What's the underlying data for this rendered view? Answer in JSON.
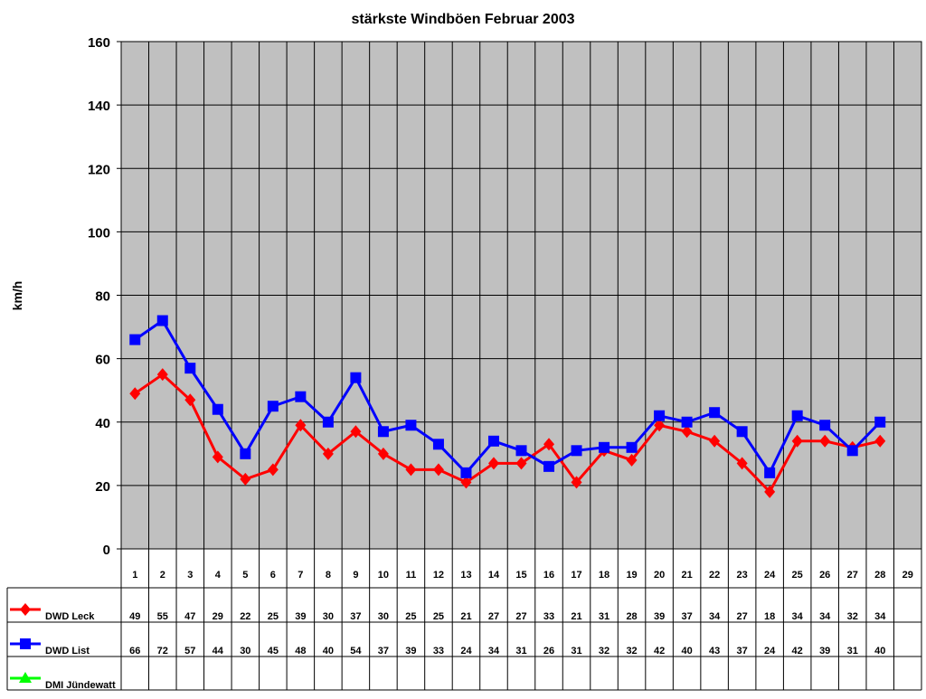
{
  "chart_data": {
    "type": "line",
    "title": "stärkste Windböen Februar 2003",
    "xlabel": "",
    "ylabel": "km/h",
    "ylim": [
      0,
      160
    ],
    "yticks": [
      0,
      20,
      40,
      60,
      80,
      100,
      120,
      140,
      160
    ],
    "categories": [
      "1",
      "2",
      "3",
      "4",
      "5",
      "6",
      "7",
      "8",
      "9",
      "10",
      "11",
      "12",
      "13",
      "14",
      "15",
      "16",
      "17",
      "18",
      "19",
      "20",
      "21",
      "22",
      "23",
      "24",
      "25",
      "26",
      "27",
      "28",
      "29"
    ],
    "grid": true,
    "plot_background": "#c0c0c0",
    "legend_placement": "data-table-left",
    "series": [
      {
        "name": "DWD Leck",
        "color": "#ff0000",
        "marker": "diamond",
        "values": [
          49,
          55,
          47,
          29,
          22,
          25,
          39,
          30,
          37,
          30,
          25,
          25,
          21,
          27,
          27,
          33,
          21,
          31,
          28,
          39,
          37,
          34,
          27,
          18,
          34,
          34,
          32,
          34,
          null
        ]
      },
      {
        "name": "DWD List",
        "color": "#0000ff",
        "marker": "square",
        "values": [
          66,
          72,
          57,
          44,
          30,
          45,
          48,
          40,
          54,
          37,
          39,
          33,
          24,
          34,
          31,
          26,
          31,
          32,
          32,
          42,
          40,
          43,
          37,
          24,
          42,
          39,
          31,
          40,
          null
        ]
      },
      {
        "name": "DMI Jündewatt",
        "color": "#00ff00",
        "marker": "triangle",
        "values": [
          null,
          null,
          null,
          null,
          null,
          null,
          null,
          null,
          null,
          null,
          null,
          null,
          null,
          null,
          null,
          null,
          null,
          null,
          null,
          null,
          null,
          null,
          null,
          null,
          null,
          null,
          null,
          null,
          null
        ]
      }
    ]
  }
}
